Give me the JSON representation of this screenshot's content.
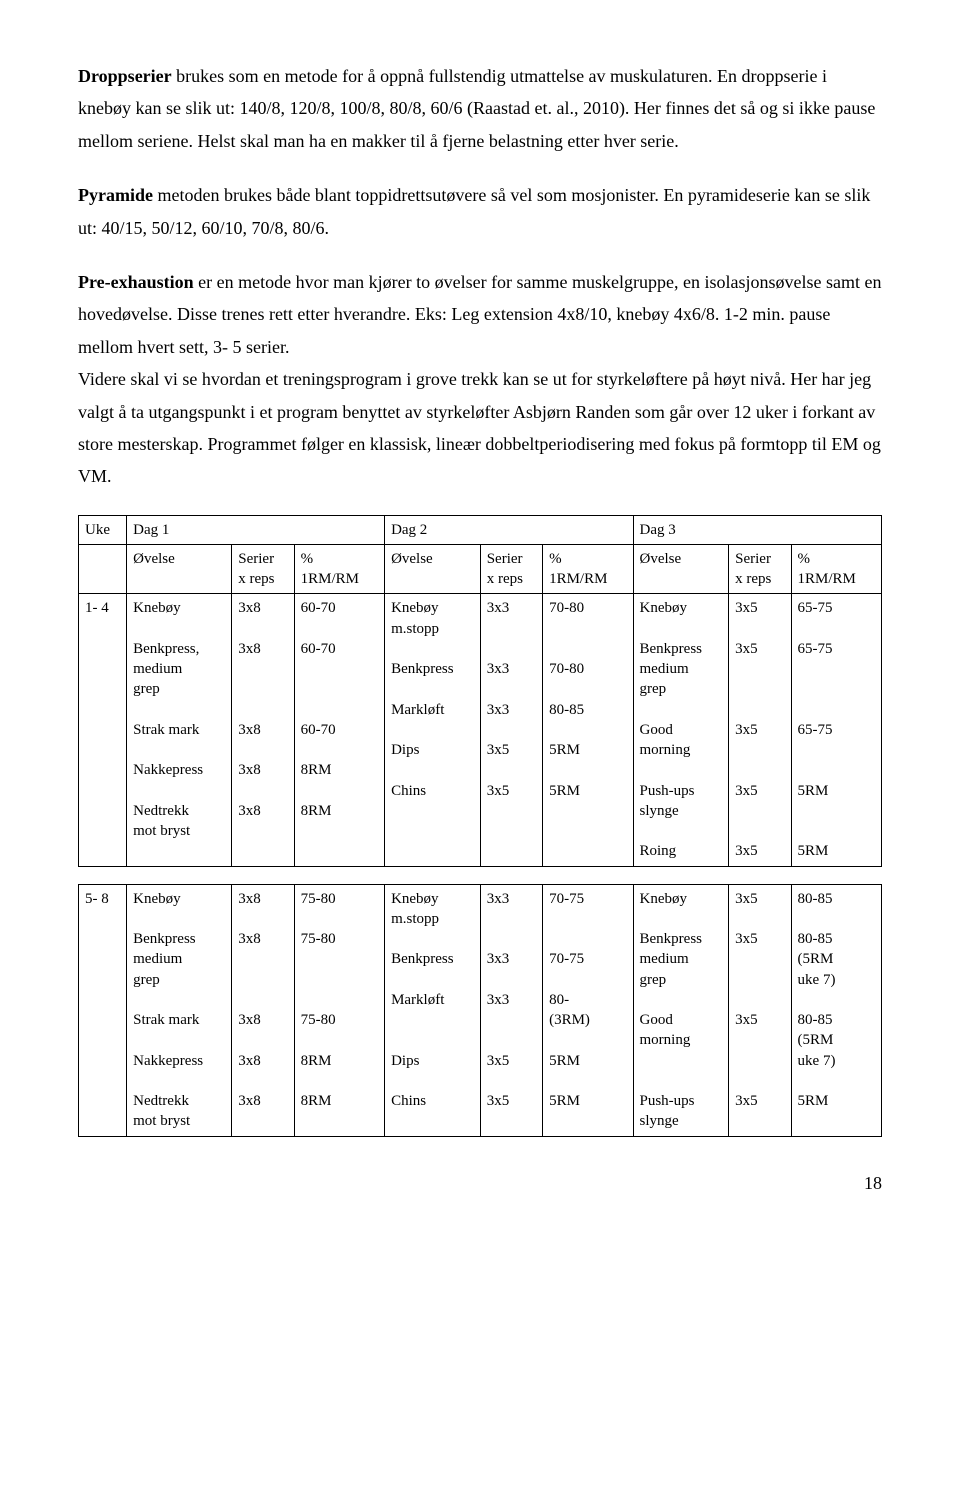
{
  "para1": {
    "lead_bold": "Droppserier",
    "rest": " brukes som en metode for å oppnå fullstendig utmattelse av muskulaturen. En droppserie i knebøy kan se slik ut: 140/8, 120/8, 100/8, 80/8, 60/6 (Raastad et. al., 2010). Her finnes det så og si ikke pause mellom seriene. Helst skal man ha en makker til å fjerne belastning etter hver serie."
  },
  "para2": {
    "lead_bold": "Pyramide",
    "rest": " metoden brukes både blant toppidrettsutøvere så vel som mosjonister. En pyramideserie kan se slik ut: 40/15, 50/12, 60/10, 70/8, 80/6."
  },
  "para3": {
    "lead_bold": "Pre-exhaustion",
    "rest1": " er en metode hvor man kjører to øvelser for samme muskelgruppe, en isolasjonsøvelse samt en hovedøvelse. Disse trenes rett etter hverandre. Eks: Leg extension 4x8/10, knebøy 4x6/8. 1-2 min. pause mellom hvert sett, 3- 5 serier.",
    "rest2": "Videre skal vi se hvordan et treningsprogram i grove trekk kan se ut for styrkeløftere på høyt nivå. Her har jeg valgt å ta utgangspunkt i et program benyttet av styrkeløfter Asbjørn Randen som går over 12 uker i forkant av store mesterskap. Programmet følger en klassisk, lineær dobbeltperiodisering med fokus på formtopp til EM og VM."
  },
  "head": {
    "uke": "Uke",
    "dag1": "Dag 1",
    "dag2": "Dag 2",
    "dag3": "Dag 3",
    "ovelse": "Øvelse",
    "serier_l1": "Serier",
    "serier_l2": "x reps",
    "pct_l1": "%",
    "pct_l2": "1RM/RM"
  },
  "row1": {
    "uke": "1- 4",
    "d1_ov": [
      "Knebøy",
      "",
      "Benkpress,",
      "medium",
      "grep",
      "",
      "Strak mark",
      "",
      "Nakkepress",
      "",
      "Nedtrekk",
      "mot bryst"
    ],
    "d1_se": [
      "3x8",
      "",
      "3x8",
      "",
      "",
      "",
      "3x8",
      "",
      "3x8",
      "",
      "3x8"
    ],
    "d1_pc": [
      "60-70",
      "",
      "60-70",
      "",
      "",
      "",
      "60-70",
      "",
      "8RM",
      "",
      "8RM"
    ],
    "d2_ov": [
      "Knebøy",
      "m.stopp",
      "",
      "Benkpress",
      "",
      "Markløft",
      "",
      "Dips",
      "",
      "Chins"
    ],
    "d2_se": [
      "3x3",
      "",
      "",
      "3x3",
      "",
      "3x3",
      "",
      "3x5",
      "",
      "3x5"
    ],
    "d2_pc": [
      "70-80",
      "",
      "",
      "70-80",
      "",
      "80-85",
      "",
      "5RM",
      "",
      "5RM"
    ],
    "d3_ov": [
      "Knebøy",
      "",
      "Benkpress",
      "medium",
      "grep",
      "",
      "Good",
      "morning",
      "",
      "Push-ups",
      "slynge",
      "",
      "Roing"
    ],
    "d3_se": [
      "3x5",
      "",
      "3x5",
      "",
      "",
      "",
      "3x5",
      "",
      "",
      "3x5",
      "",
      "",
      "3x5"
    ],
    "d3_pc": [
      "65-75",
      "",
      "65-75",
      "",
      "",
      "",
      "65-75",
      "",
      "",
      "5RM",
      "",
      "",
      "5RM"
    ]
  },
  "row2": {
    "uke": "5- 8",
    "d1_ov": [
      "Knebøy",
      "",
      "Benkpress",
      "medium",
      "grep",
      "",
      "Strak mark",
      "",
      "Nakkepress",
      "",
      "Nedtrekk",
      "mot bryst"
    ],
    "d1_se": [
      "3x8",
      "",
      "3x8",
      "",
      "",
      "",
      "3x8",
      "",
      "3x8",
      "",
      "3x8"
    ],
    "d1_pc": [
      "75-80",
      "",
      "75-80",
      "",
      "",
      "",
      "75-80",
      "",
      "8RM",
      "",
      "8RM"
    ],
    "d2_ov": [
      "Knebøy",
      "m.stopp",
      "",
      "Benkpress",
      "",
      "Markløft",
      "",
      "",
      "Dips",
      "",
      "Chins"
    ],
    "d2_se": [
      "3x3",
      "",
      "",
      "3x3",
      "",
      "3x3",
      "",
      "",
      "3x5",
      "",
      "3x5"
    ],
    "d2_pc": [
      "70-75",
      "",
      "",
      "70-75",
      "",
      "80-",
      "(3RM)",
      "",
      "5RM",
      "",
      "5RM"
    ],
    "d3_ov": [
      "Knebøy",
      "",
      "Benkpress",
      "medium",
      "grep",
      "",
      "Good",
      "morning",
      "",
      "",
      "Push-ups",
      "slynge"
    ],
    "d3_se": [
      "3x5",
      "",
      "3x5",
      "",
      "",
      "",
      "3x5",
      "",
      "",
      "",
      "3x5"
    ],
    "d3_pc": [
      "80-85",
      "",
      "80-85",
      "(5RM",
      "uke 7)",
      "",
      "80-85",
      "(5RM",
      "uke 7)",
      "",
      "5RM"
    ]
  },
  "pagenum": "18"
}
